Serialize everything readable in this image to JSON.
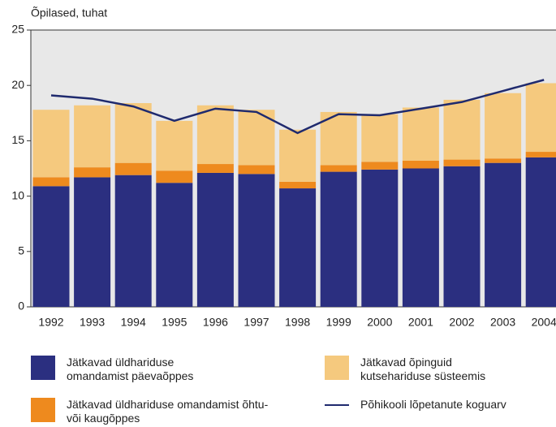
{
  "chart_data": {
    "type": "bar",
    "stacked": true,
    "y_label": "Õpilased, tuhat",
    "categories": [
      "1992",
      "1993",
      "1994",
      "1995",
      "1996",
      "1997",
      "1998",
      "1999",
      "2000",
      "2001",
      "2002",
      "2003",
      "2004"
    ],
    "series": [
      {
        "name": "Jätkavad üldhariduse omandamist päevaõppes",
        "color": "#2b2f80",
        "values": [
          10.9,
          11.7,
          11.9,
          11.2,
          12.1,
          12.0,
          10.7,
          12.2,
          12.4,
          12.5,
          12.7,
          13.0,
          13.5
        ]
      },
      {
        "name": "Jätkavad üldhariduse omandamist õhtu- või kaugõppes",
        "color": "#ee8a1e",
        "values": [
          0.8,
          0.9,
          1.1,
          1.1,
          0.8,
          0.8,
          0.6,
          0.6,
          0.7,
          0.7,
          0.6,
          0.4,
          0.5
        ]
      },
      {
        "name": "Jätkavad õpinguid kutsehariduse süsteemis",
        "color": "#f5c97e",
        "values": [
          6.1,
          5.6,
          5.4,
          4.5,
          5.3,
          5.0,
          4.7,
          4.8,
          4.3,
          4.8,
          5.4,
          5.9,
          6.2
        ]
      },
      {
        "name": "Põhikooli lõpetanute koguarv",
        "type": "line",
        "color": "#1f2a6e",
        "values": [
          19.1,
          18.8,
          18.1,
          16.8,
          17.9,
          17.6,
          15.7,
          17.4,
          17.3,
          17.9,
          18.5,
          19.5,
          20.5
        ]
      }
    ],
    "ylim": [
      0,
      25
    ],
    "yticks": [
      0,
      5,
      10,
      15,
      20,
      25
    ]
  }
}
